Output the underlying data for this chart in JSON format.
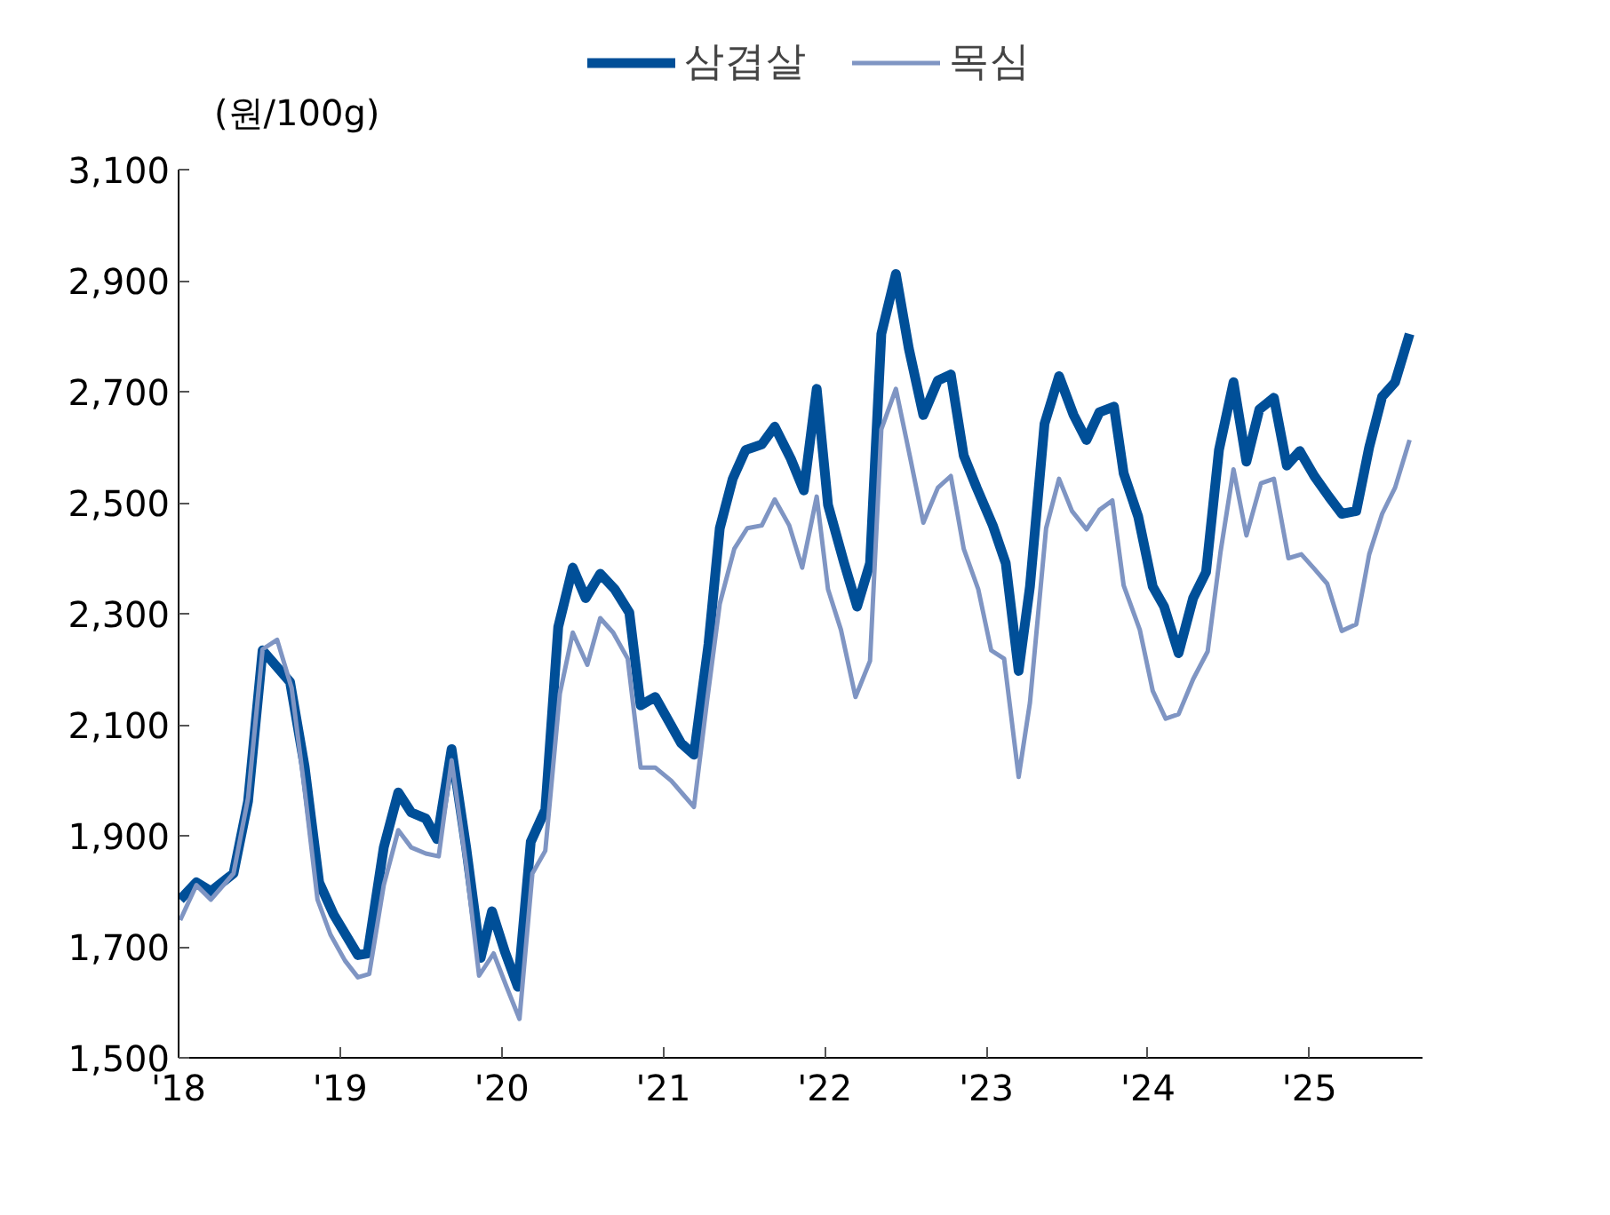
{
  "chart_data": {
    "type": "line",
    "ylabel": "(원/100g)",
    "legend": "top",
    "grid": false,
    "line_style": "solid",
    "xlim": [
      2018,
      2025.7
    ],
    "xticks": [
      {
        "value": 2018,
        "label": "'18"
      },
      {
        "value": 2019,
        "label": "'19"
      },
      {
        "value": 2020,
        "label": "'20"
      },
      {
        "value": 2021,
        "label": "'21"
      },
      {
        "value": 2022,
        "label": "'22"
      },
      {
        "value": 2023,
        "label": "'23"
      },
      {
        "value": 2024,
        "label": "'24"
      },
      {
        "value": 2025,
        "label": "'25"
      }
    ],
    "ylim": [
      1500,
      3100
    ],
    "yticks": [
      {
        "value": 1500,
        "label": "1,500"
      },
      {
        "value": 1700,
        "label": "1,700"
      },
      {
        "value": 1900,
        "label": "1,900"
      },
      {
        "value": 2100,
        "label": "2,100"
      },
      {
        "value": 2300,
        "label": "2,300"
      },
      {
        "value": 2500,
        "label": "2,500"
      },
      {
        "value": 2700,
        "label": "2,700"
      },
      {
        "value": 2900,
        "label": "2,900"
      },
      {
        "value": 3100,
        "label": "3,100"
      }
    ],
    "series": [
      {
        "name": "삼겹살",
        "color": "#004f98",
        "x": [
          2018.01,
          2018.11,
          2018.2,
          2018.34,
          2018.43,
          2018.52,
          2018.69,
          2018.78,
          2018.87,
          2018.96,
          2019.11,
          2019.17,
          2019.27,
          2019.36,
          2019.44,
          2019.53,
          2019.6,
          2019.69,
          2019.78,
          2019.87,
          2019.94,
          2020.02,
          2020.1,
          2020.18,
          2020.27,
          2020.35,
          2020.44,
          2020.52,
          2020.61,
          2020.7,
          2020.79,
          2020.86,
          2020.95,
          2021.11,
          2021.19,
          2021.28,
          2021.35,
          2021.43,
          2021.51,
          2021.61,
          2021.69,
          2021.79,
          2021.87,
          2021.95,
          2022.02,
          2022.12,
          2022.2,
          2022.28,
          2022.35,
          2022.44,
          2022.52,
          2022.61,
          2022.7,
          2022.78,
          2022.86,
          2022.94,
          2023.04,
          2023.12,
          2023.2,
          2023.27,
          2023.36,
          2023.45,
          2023.54,
          2023.62,
          2023.7,
          2023.79,
          2023.85,
          2023.94,
          2024.03,
          2024.1,
          2024.19,
          2024.28,
          2024.36,
          2024.44,
          2024.53,
          2024.61,
          2024.69,
          2024.78,
          2024.86,
          2024.94,
          2025.03,
          2025.12,
          2025.2,
          2025.29,
          2025.37,
          2025.45,
          2025.53,
          2025.62
        ],
        "values": [
          1785,
          1816,
          1800,
          1832,
          1962,
          2234,
          2177,
          2025,
          1816,
          1758,
          1685,
          1688,
          1879,
          1978,
          1942,
          1931,
          1894,
          2056,
          1879,
          1680,
          1764,
          1691,
          1628,
          1889,
          1947,
          2276,
          2383,
          2328,
          2372,
          2344,
          2302,
          2135,
          2150,
          2067,
          2046,
          2245,
          2454,
          2543,
          2595,
          2605,
          2637,
          2579,
          2522,
          2705,
          2496,
          2391,
          2313,
          2391,
          2804,
          2912,
          2778,
          2658,
          2720,
          2731,
          2585,
          2527,
          2459,
          2391,
          2197,
          2349,
          2642,
          2728,
          2658,
          2613,
          2663,
          2673,
          2553,
          2475,
          2349,
          2313,
          2229,
          2328,
          2375,
          2595,
          2717,
          2574,
          2668,
          2689,
          2567,
          2593,
          2548,
          2511,
          2480,
          2485,
          2600,
          2691,
          2717,
          2804
        ]
      },
      {
        "name": "목심",
        "color": "#7f95c3",
        "x": [
          2018.01,
          2018.11,
          2018.2,
          2018.34,
          2018.43,
          2018.52,
          2018.61,
          2018.7,
          2018.78,
          2018.86,
          2018.94,
          2019.03,
          2019.11,
          2019.18,
          2019.27,
          2019.36,
          2019.44,
          2019.53,
          2019.61,
          2019.69,
          2019.78,
          2019.86,
          2019.95,
          2020.03,
          2020.11,
          2020.19,
          2020.27,
          2020.36,
          2020.44,
          2020.53,
          2020.61,
          2020.69,
          2020.78,
          2020.86,
          2020.95,
          2021.05,
          2021.19,
          2021.27,
          2021.35,
          2021.44,
          2021.52,
          2021.61,
          2021.69,
          2021.78,
          2021.86,
          2021.95,
          2022.02,
          2022.1,
          2022.19,
          2022.28,
          2022.35,
          2022.44,
          2022.53,
          2022.61,
          2022.7,
          2022.78,
          2022.86,
          2022.95,
          2023.03,
          2023.11,
          2023.2,
          2023.27,
          2023.37,
          2023.45,
          2023.53,
          2023.62,
          2023.7,
          2023.78,
          2023.85,
          2023.95,
          2024.03,
          2024.11,
          2024.19,
          2024.28,
          2024.37,
          2024.45,
          2024.53,
          2024.61,
          2024.7,
          2024.78,
          2024.87,
          2024.95,
          2025.03,
          2025.11,
          2025.2,
          2025.29,
          2025.37,
          2025.45,
          2025.53,
          2025.62
        ],
        "values": [
          1748,
          1811,
          1785,
          1832,
          1968,
          2236,
          2253,
          2166,
          1983,
          1785,
          1722,
          1675,
          1645,
          1651,
          1811,
          1910,
          1879,
          1868,
          1863,
          2036,
          1847,
          1648,
          1688,
          1628,
          1570,
          1832,
          1873,
          2156,
          2266,
          2208,
          2292,
          2266,
          2219,
          2023,
          2023,
          1999,
          1952,
          2140,
          2318,
          2417,
          2454,
          2459,
          2506,
          2459,
          2383,
          2511,
          2344,
          2271,
          2150,
          2215,
          2632,
          2705,
          2579,
          2464,
          2527,
          2548,
          2417,
          2344,
          2234,
          2219,
          2006,
          2140,
          2454,
          2543,
          2485,
          2452,
          2487,
          2504,
          2351,
          2271,
          2161,
          2111,
          2119,
          2182,
          2232,
          2412,
          2560,
          2441,
          2535,
          2543,
          2400,
          2407,
          2381,
          2354,
          2269,
          2281,
          2407,
          2480,
          2527,
          2613
        ]
      }
    ]
  }
}
